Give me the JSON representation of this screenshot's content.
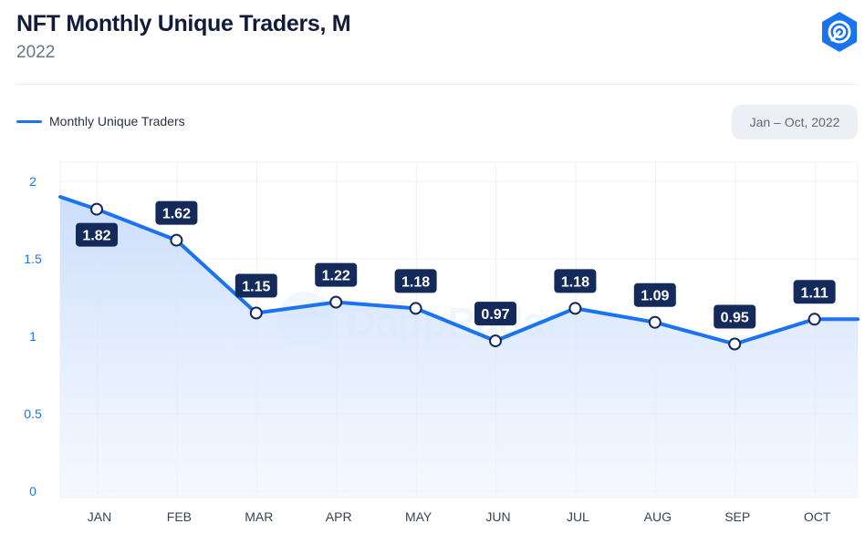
{
  "header": {
    "title": "NFT Monthly Unique Traders, M",
    "subtitle": "2022",
    "logo_icon": "dappradar-logo-icon"
  },
  "legend": {
    "label": "Monthly Unique Traders",
    "color": "#1a73f0"
  },
  "range_button": {
    "label": "Jan – Oct, 2022"
  },
  "watermark": {
    "text": "DappRadar"
  },
  "colors": {
    "line": "#1a73f0",
    "label_bg": "#142a5a",
    "grid": "#eef0f4",
    "area_top": "#c9dcfb"
  },
  "chart_data": {
    "type": "line",
    "title": "NFT Monthly Unique Traders, M",
    "subtitle": "2022",
    "categories": [
      "JAN",
      "FEB",
      "MAR",
      "APR",
      "MAY",
      "JUN",
      "JUL",
      "AUG",
      "SEP",
      "OCT"
    ],
    "series": [
      {
        "name": "Monthly Unique Traders",
        "values": [
          1.82,
          1.62,
          1.15,
          1.22,
          1.18,
          0.97,
          1.18,
          1.09,
          0.95,
          1.11
        ]
      }
    ],
    "data_labels": [
      "1.82",
      "1.62",
      "1.15",
      "1.22",
      "1.18",
      "0.97",
      "1.18",
      "1.09",
      "0.95",
      "1.11"
    ],
    "yticks": [
      "0",
      "0.5",
      "1",
      "1.5",
      "2"
    ],
    "ylim": [
      0,
      2
    ],
    "grid": true,
    "legend_position": "top-left",
    "area_fill": true
  }
}
